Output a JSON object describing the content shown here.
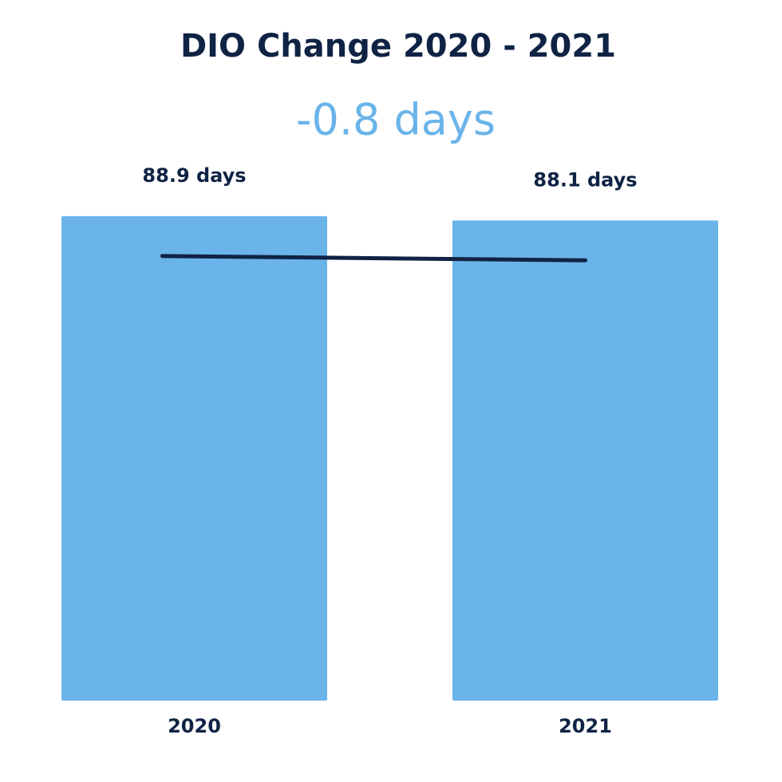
{
  "chart_data": {
    "type": "bar",
    "title": "DIO Change 2020 - 2021",
    "subtitle": "-0.8 days",
    "categories": [
      "2020",
      "2021"
    ],
    "values": [
      88.9,
      88.1
    ],
    "value_labels": [
      "88.9 days",
      "88.1 days"
    ],
    "color": "#6ab4ea",
    "trend_color": "#0f2344",
    "ylim": [
      0,
      100
    ]
  }
}
